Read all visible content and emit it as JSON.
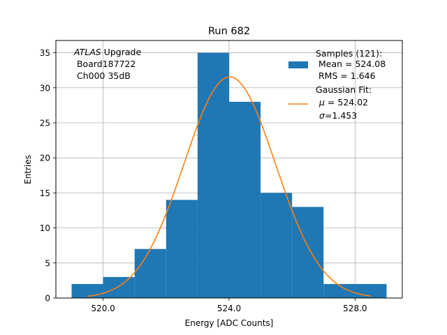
{
  "chart_data": {
    "type": "bar",
    "title": "Run 682",
    "xlabel": "Energy [ADC Counts]",
    "ylabel": "Entries",
    "xlim": [
      518.5,
      529.5
    ],
    "ylim": [
      0,
      36.75
    ],
    "grid": true,
    "x_ticks": [
      520.0,
      524.0,
      528.0
    ],
    "x_tick_labels": [
      "520.0",
      "524.0",
      "528.0"
    ],
    "y_ticks": [
      0,
      5,
      10,
      15,
      20,
      25,
      30,
      35
    ],
    "y_tick_labels": [
      "0",
      "5",
      "10",
      "15",
      "20",
      "25",
      "30",
      "35"
    ],
    "bin_edges": [
      519,
      520,
      521,
      522,
      523,
      524,
      525,
      526,
      527,
      528,
      529
    ],
    "values": [
      2,
      3,
      7,
      14,
      35,
      28,
      15,
      13,
      2,
      2
    ],
    "fit": {
      "mu": 524.02,
      "sigma": 1.453,
      "amplitude": 31.55,
      "x_range": [
        519.5,
        528.5
      ]
    },
    "colors": {
      "histogram": "#1f77b4",
      "fit_line": "#ff7f0e",
      "grid": "#b0b0b0"
    },
    "annotation": {
      "atlas": "ATLAS",
      "upgrade": " Upgrade",
      "board": " Board187722",
      "channel": " Ch000 35dB"
    },
    "legend": {
      "placement": "top-right",
      "samples_line1": "Samples (121):",
      "samples_line2": " Mean = 524.08",
      "samples_line3": " RMS = 1.646",
      "fit_line1": "Gaussian Fit:",
      "fit_line2_sym": "μ",
      "fit_line2": " = 524.02",
      "fit_line3_sym": "σ",
      "fit_line3": "=1.453"
    }
  }
}
